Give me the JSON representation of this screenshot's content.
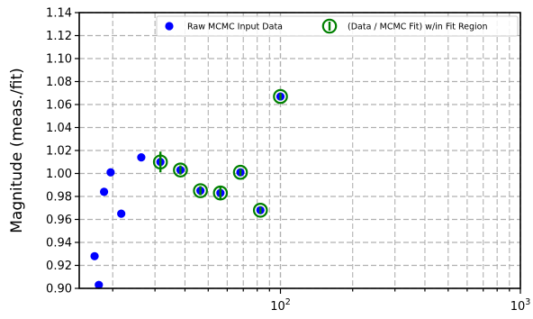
{
  "chart_data": {
    "type": "scatter",
    "title": "",
    "xlabel": "",
    "ylabel": "Magnitude (meas./fit)",
    "xscale": "log",
    "xlim": [
      14.5,
      1000
    ],
    "ylim": [
      0.9,
      1.14
    ],
    "x_ticks": [
      {
        "value": 100,
        "base": "10",
        "exp": "2"
      },
      {
        "value": 1000,
        "base": "10",
        "exp": "3"
      }
    ],
    "y_ticks": [
      "0.90",
      "0.92",
      "0.94",
      "0.96",
      "0.98",
      "1.00",
      "1.02",
      "1.04",
      "1.06",
      "1.08",
      "1.10",
      "1.12",
      "1.14"
    ],
    "grid": true,
    "legend_position": "top-right",
    "series": [
      {
        "name": "Raw MCMC Input Data",
        "color": "#0000ff",
        "marker": "filled-circle",
        "points": [
          {
            "x": 16.8,
            "y": 0.928
          },
          {
            "x": 17.5,
            "y": 0.903
          },
          {
            "x": 18.4,
            "y": 0.984
          },
          {
            "x": 19.6,
            "y": 1.001
          },
          {
            "x": 21.7,
            "y": 0.965
          },
          {
            "x": 26.3,
            "y": 1.014
          },
          {
            "x": 31.6,
            "y": 1.01
          },
          {
            "x": 38.3,
            "y": 1.003
          },
          {
            "x": 46.4,
            "y": 0.985
          },
          {
            "x": 56.2,
            "y": 0.983
          },
          {
            "x": 68.1,
            "y": 1.001
          },
          {
            "x": 82.5,
            "y": 0.968
          },
          {
            "x": 100,
            "y": 1.067
          }
        ]
      },
      {
        "name": "(Data / MCMC Fit) w/in Fit Region",
        "color": "#008000",
        "marker": "open-circle-errorbar",
        "points": [
          {
            "x": 31.6,
            "y": 1.01,
            "yerr": 0.009
          },
          {
            "x": 38.3,
            "y": 1.003,
            "yerr": 0.004
          },
          {
            "x": 46.4,
            "y": 0.985,
            "yerr": 0.004
          },
          {
            "x": 56.2,
            "y": 0.983,
            "yerr": 0.006
          },
          {
            "x": 68.1,
            "y": 1.001,
            "yerr": 0.003
          },
          {
            "x": 82.5,
            "y": 0.968,
            "yerr": 0.003
          },
          {
            "x": 100,
            "y": 1.067,
            "yerr": 0.003
          }
        ]
      }
    ]
  }
}
